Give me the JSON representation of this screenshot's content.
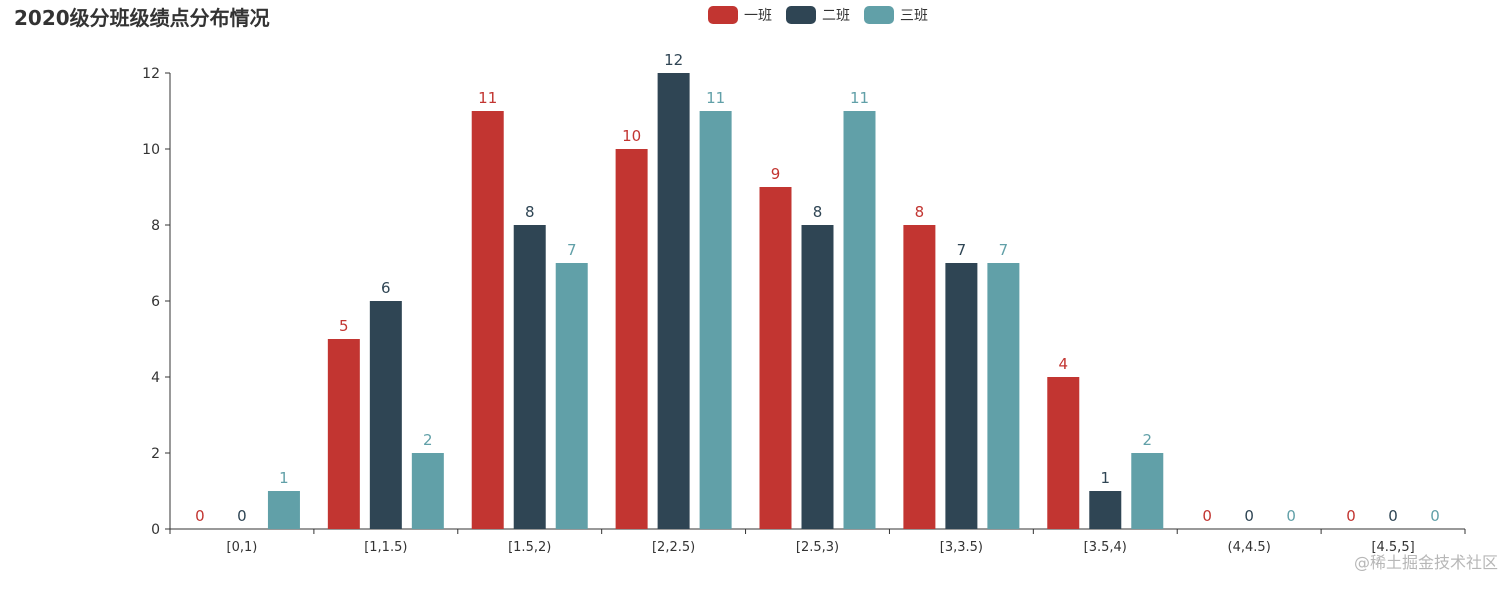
{
  "title": "2020级分班级绩点分布情况",
  "watermark": "@稀土掘金技术社区",
  "colors": {
    "series": [
      "#c23531",
      "#2f4554",
      "#61a0a8"
    ],
    "axis": "#333333",
    "text": "#333333"
  },
  "chart_data": {
    "type": "bar",
    "title": "2020级分班级绩点分布情况",
    "categories": [
      "[0,1)",
      "[1,1.5)",
      "[1.5,2)",
      "[2,2.5)",
      "[2.5,3)",
      "[3,3.5)",
      "[3.5,4)",
      "(4,4.5)",
      "[4.5,5]"
    ],
    "series": [
      {
        "name": "一班",
        "values": [
          0,
          5,
          11,
          10,
          9,
          8,
          4,
          0,
          0
        ]
      },
      {
        "name": "二班",
        "values": [
          0,
          6,
          8,
          12,
          8,
          7,
          1,
          0,
          0
        ]
      },
      {
        "name": "三班",
        "values": [
          1,
          2,
          7,
          11,
          11,
          7,
          2,
          0,
          0
        ]
      }
    ],
    "ylim": [
      0,
      12
    ],
    "yticks": [
      0,
      2,
      4,
      6,
      8,
      10,
      12
    ],
    "legend": "top-center",
    "grid": false,
    "data_labels": true
  }
}
